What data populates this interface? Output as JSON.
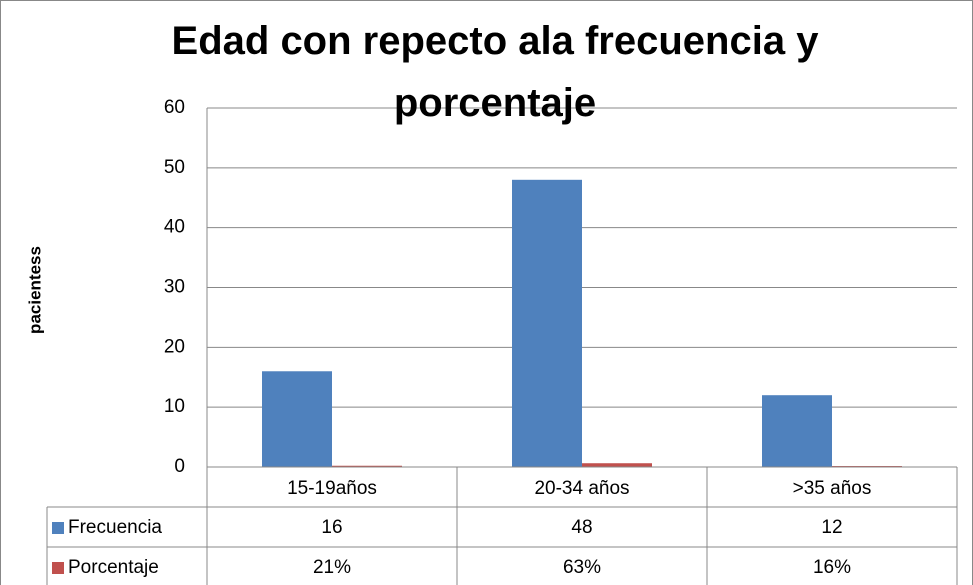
{
  "chart_data": {
    "type": "bar",
    "title": "Edad con repecto ala frecuencia y porcentaje",
    "y_label": "pacientess",
    "categories": [
      "15-19años",
      "20-34 años",
      ">35 años"
    ],
    "series": [
      {
        "name": "Frecuencia",
        "color": "#4f81bd",
        "values": [
          16,
          48,
          12
        ]
      },
      {
        "name": "Porcentaje",
        "color": "#c0504d",
        "values": [
          0.21,
          0.63,
          0.16
        ],
        "value_labels": [
          "21%",
          "63%",
          "16%"
        ]
      }
    ],
    "ylim": [
      0,
      60
    ],
    "yticks": [
      0,
      10,
      20,
      30,
      40,
      50,
      60
    ],
    "grid": true,
    "data_table": true
  }
}
